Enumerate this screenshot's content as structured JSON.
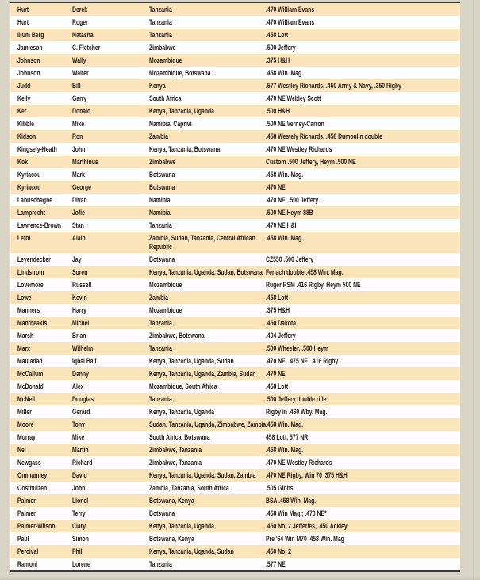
{
  "page": {
    "background_color": "#d8d4c6",
    "table_border_color": "#3a3a38",
    "row_alt_color": "#fbe3ba",
    "row_base_color": "#fdfdfd",
    "text_color": "#211c18"
  },
  "table": {
    "rows": [
      [
        "Hurt",
        "Derek",
        "Tanzania",
        ".470 William Evans"
      ],
      [
        "Hurt",
        "Roger",
        "Tanzania",
        ".470 William Evans"
      ],
      [
        "Illum Berg",
        "Natasha",
        "Tanzania",
        ".458 Lott"
      ],
      [
        "Jamieson",
        "C. Fletcher",
        "Zimbabwe",
        ".500 Jeffery"
      ],
      [
        "Johnson",
        "Wally",
        "Mozambique",
        ".375 H&H"
      ],
      [
        "Johnson",
        "Walter",
        "Mozambique, Botswana",
        ".458 Win. Mag."
      ],
      [
        "Judd",
        "Bill",
        "Kenya",
        ".577 Westley Richards, .450 Army & Navy, .350 Rigby"
      ],
      [
        "Kelly",
        "Garry",
        "South Africa",
        ".470 NE Webley Scott"
      ],
      [
        "Ker",
        "Donald",
        "Kenya, Tanzania, Uganda",
        ".500 H&H"
      ],
      [
        "Kibble",
        "Mike",
        "Namibia, Caprivi",
        ".500 NE Verney-Carron"
      ],
      [
        "Kidson",
        "Ron",
        "Zambia",
        ".458 Westely Richards, .458 Dumoulin double"
      ],
      [
        "Kingsely-Heath",
        "John",
        "Kenya, Tanzania, Botswana",
        ".470 NE Westley Richards"
      ],
      [
        "Kok",
        "Marthinus",
        "Zimbabwe",
        "Custom .500 Jeffery, Heym .500 NE"
      ],
      [
        "Kyriacou",
        "Mark",
        "Botswana",
        ".458 Win. Mag."
      ],
      [
        "Kyriacou",
        "George",
        "Botswana",
        ".470 NE"
      ],
      [
        "Labuschagne",
        "Divan",
        "Namibia",
        ".470 NE, .500 Jeffery"
      ],
      [
        "Lamprecht",
        "Jofie",
        "Namibia",
        ".500 NE Heym 88B"
      ],
      [
        "Lawrence-Brown",
        "Stan",
        "Tanzania",
        ".470 NE H&H"
      ],
      [
        "Lefol",
        "Alain",
        "Zambia, Sudan, Tanzania, Central African\nRepublic",
        ".458 Win. Mag."
      ],
      [
        "Leyendecker",
        "Jay",
        "Botswana",
        "CZ550 .500 Jeffery"
      ],
      [
        "Lindstrom",
        "Soren",
        "Kenya, Tanzania, Uganda, Sudan, Botswana",
        "Ferlach double .458 Win. Mag."
      ],
      [
        "Lovemore",
        "Russell",
        "Mozambique",
        "Ruger RSM .416 Rigby, Heym 500 NE"
      ],
      [
        "Lowe",
        "Kevin",
        "Zambia",
        ".458 Lott"
      ],
      [
        "Manners",
        "Harry",
        "Mozambique",
        ".375 H&H"
      ],
      [
        "Mantheakis",
        "Michel",
        "Tanzania",
        ".450 Dakota"
      ],
      [
        "Marsh",
        "Brian",
        "Zimbabwe, Botswana",
        ".404 Jeffery"
      ],
      [
        "Marx",
        "Wilhelm",
        "Tanzania",
        ".500 Wheeler, .500 Heym"
      ],
      [
        "Mauladad",
        "Iqbal Bali",
        "Kenya, Tanzania, Uganda, Sudan",
        ".470 NE, .475 NE, .416 Rigby"
      ],
      [
        "McCallum",
        "Danny",
        "Kenya, Tanzania, Uganda, Zambia, Sudan",
        ".470 NE"
      ],
      [
        "McDonald",
        "Alex",
        "Mozambique, South Africa",
        ".458 Lott"
      ],
      [
        "McNeil",
        "Douglas",
        "Tanzania",
        ".500 Jeffery double rifle"
      ],
      [
        "Miller",
        "Gerard",
        "Kenya, Tanzania, Uganda",
        "Rigby in .460 Wby. Mag."
      ],
      [
        "Moore",
        "Tony",
        "Sudan, Tanzania, Uganda, Zimbabwe, Zambia",
        ".458 Win. Mag."
      ],
      [
        "Murray",
        "Mike",
        "South Africa, Botswana",
        "458 Lott, 577 NR"
      ],
      [
        "Nel",
        "Martin",
        "Zimbabwe, Tanzania",
        ".458 Win. Mag."
      ],
      [
        "Newgass",
        "Richard",
        "Zimbabwe, Tanzania",
        ".470 NE Westley Richards"
      ],
      [
        "Ommanney",
        "David",
        "Kenya, Tanzania, Uganda, Sudan, Zambia",
        ".470 NE Rigby, Win 70 .375 H&H"
      ],
      [
        "Oosthuizen",
        "John",
        "Zambia, Tanzania, South Africa",
        ".505 Gibbs"
      ],
      [
        "Palmer",
        "Lionel",
        "Botswana, Kenya",
        "BSA .458 Win. Mag."
      ],
      [
        "Palmer",
        "Terry",
        "Botswana",
        ".458 Win Mag.; .470 NE*"
      ],
      [
        "Palmer-Wilson",
        "Clary",
        "Kenya, Tanzania, Uganda",
        ".450 No. 2 Jefferies, .450 Ackley"
      ],
      [
        "Paul",
        "Simon",
        "Botswana, Kenya",
        "Pre '64 Win M70 .458 Win. Mag"
      ],
      [
        "Percival",
        "Phil",
        "Kenya, Tanzania, Uganda, Sudan",
        ".450 No. 2"
      ],
      [
        "Ramoni",
        "Lorene",
        "Tanzania",
        ".577 NE"
      ]
    ]
  }
}
